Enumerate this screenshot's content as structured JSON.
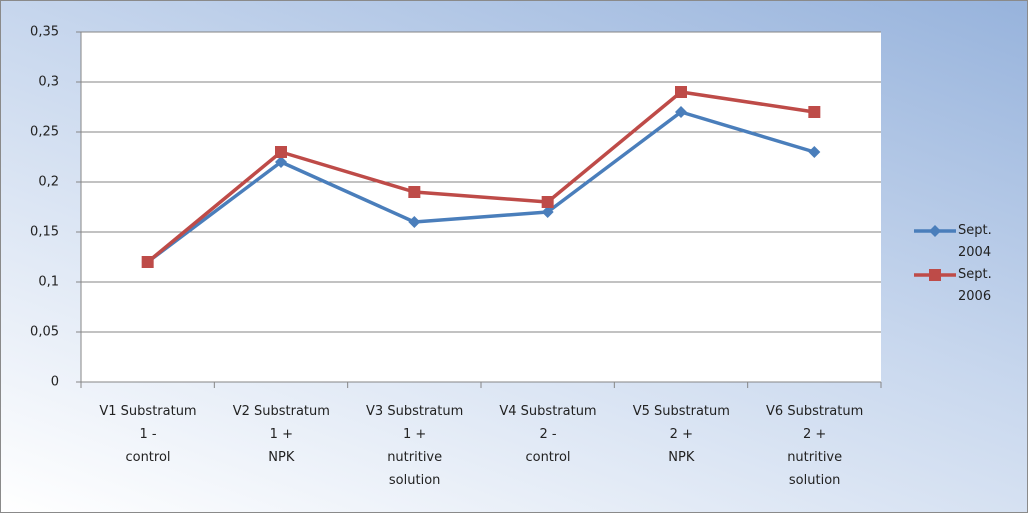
{
  "chart_data": {
    "type": "line",
    "categories": [
      "V1 Substratum\n1 -\ncontrol",
      "V2 Substratum\n1 +\nNPK",
      "V3 Substratum\n1 +\nnutritive\nsolution",
      "V4 Substratum\n2 -\ncontrol",
      "V5 Substratum\n2 +\nNPK",
      "V6 Substratum\n2 +\nnutritive\nsolution"
    ],
    "series": [
      {
        "name": "Sept. 2004",
        "color": "#4a7ebb",
        "marker": "diamond",
        "values": [
          0.12,
          0.22,
          0.16,
          0.17,
          0.27,
          0.23
        ]
      },
      {
        "name": "Sept. 2006",
        "color": "#be4b48",
        "marker": "square",
        "values": [
          0.12,
          0.23,
          0.19,
          0.18,
          0.29,
          0.27
        ]
      }
    ],
    "ylim": [
      0,
      0.35
    ],
    "yticks": [
      0,
      {
        "value": 0.05,
        "label": "0,05"
      },
      {
        "value": 0.1,
        "label": "0,1"
      },
      {
        "value": 0.15,
        "label": "0,15"
      },
      {
        "value": 0.2,
        "label": "0,2"
      },
      {
        "value": 0.25,
        "label": "0,25"
      },
      {
        "value": 0.3,
        "label": "0,3"
      },
      {
        "value": 0.35,
        "label": "0,35"
      }
    ],
    "grid": true,
    "legend": "right"
  }
}
